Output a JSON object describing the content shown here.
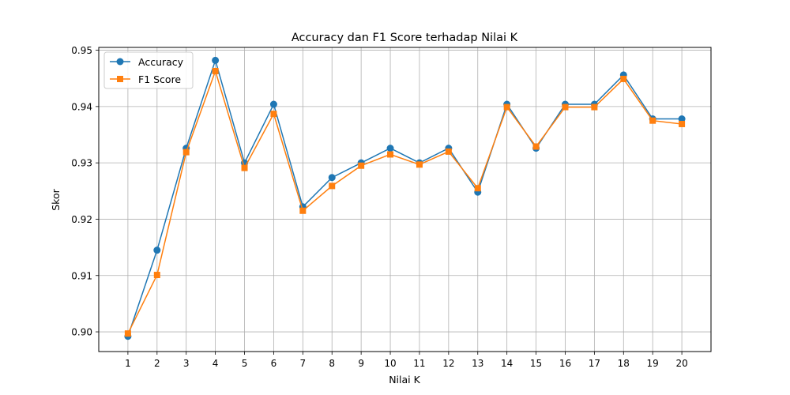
{
  "chart_data": {
    "type": "line",
    "title": "Accuracy dan F1 Score terhadap Nilai K",
    "xlabel": "Nilai K",
    "ylabel": "Skor",
    "x": [
      1,
      2,
      3,
      4,
      5,
      6,
      7,
      8,
      9,
      10,
      11,
      12,
      13,
      14,
      15,
      16,
      17,
      18,
      19,
      20
    ],
    "xlim": [
      0,
      21
    ],
    "ylim": [
      0.8965,
      0.9505
    ],
    "yticks": [
      0.9,
      0.91,
      0.92,
      0.93,
      0.94,
      0.95
    ],
    "ytick_labels": [
      "0.90",
      "0.91",
      "0.92",
      "0.93",
      "0.94",
      "0.95"
    ],
    "grid": true,
    "legend_position": "top-left",
    "series": [
      {
        "name": "Accuracy",
        "marker": "circle",
        "color": "#1f77b4",
        "values": [
          0.8992,
          0.9145,
          0.9326,
          0.9482,
          0.93,
          0.9404,
          0.9222,
          0.9274,
          0.93,
          0.9326,
          0.93,
          0.9326,
          0.9248,
          0.9404,
          0.9326,
          0.9404,
          0.9404,
          0.9456,
          0.9378,
          0.9378
        ]
      },
      {
        "name": "F1 Score",
        "marker": "square",
        "color": "#ff7f0e",
        "values": [
          0.8997,
          0.9101,
          0.9319,
          0.9463,
          0.9291,
          0.9387,
          0.9215,
          0.9259,
          0.9295,
          0.9315,
          0.9297,
          0.932,
          0.9255,
          0.9399,
          0.9329,
          0.9399,
          0.9399,
          0.9449,
          0.9375,
          0.9369
        ]
      }
    ]
  }
}
